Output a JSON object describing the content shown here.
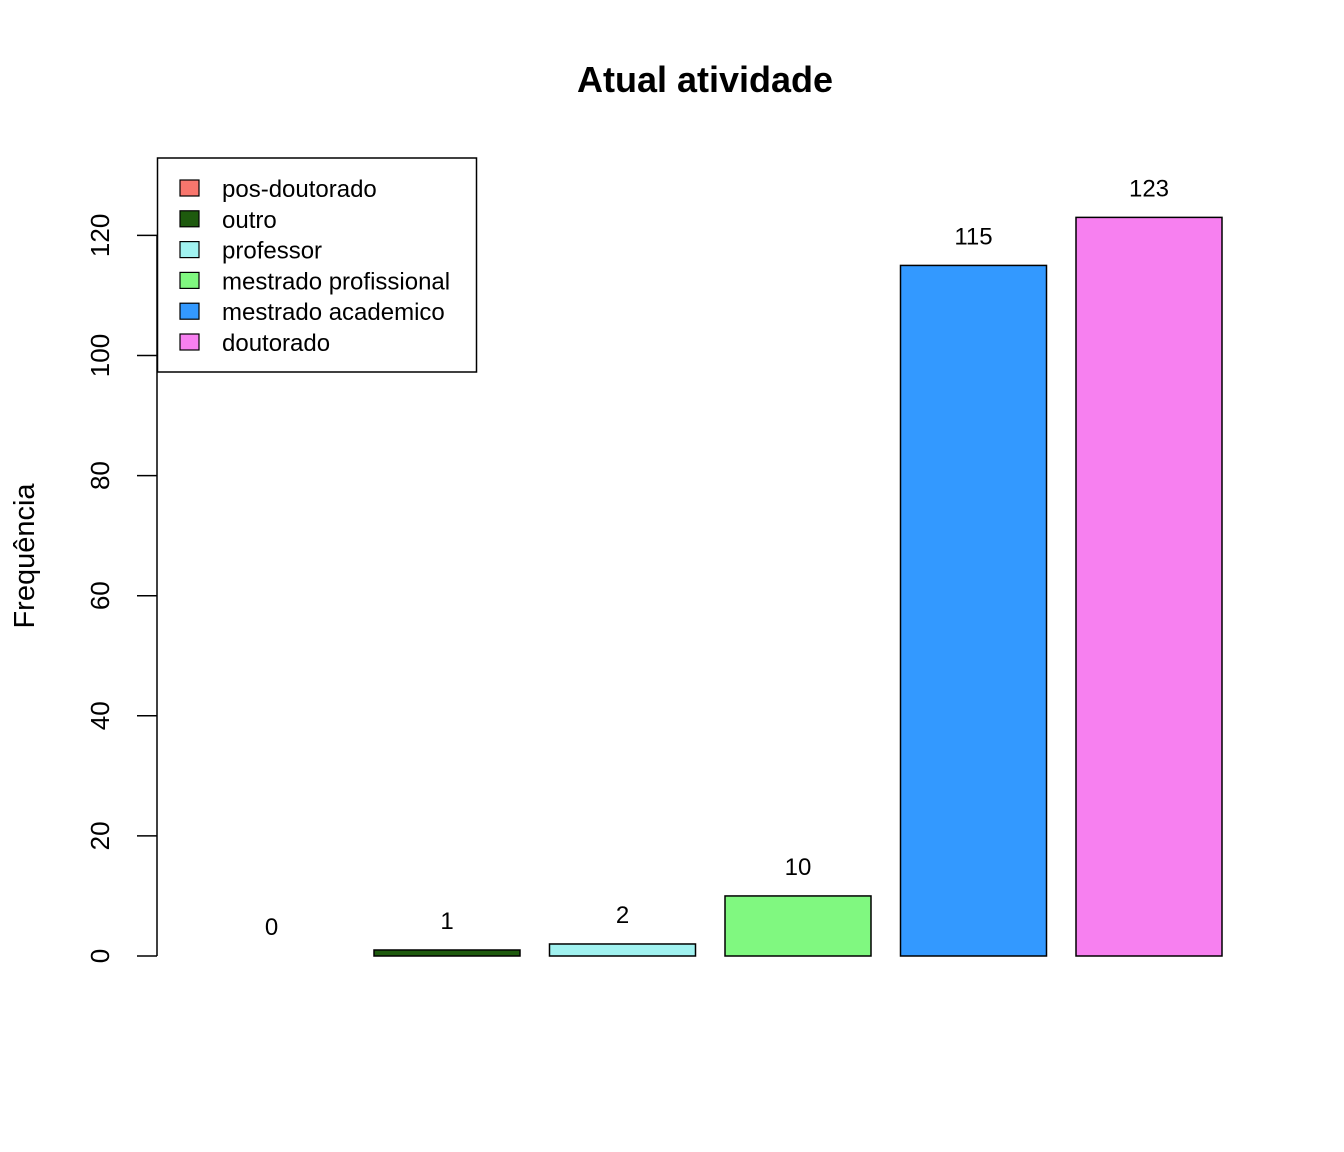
{
  "chart_data": {
    "type": "bar",
    "title": "Atual atividade",
    "xlabel": "",
    "ylabel": "Frequência",
    "ylim": [
      0,
      133
    ],
    "yticks": [
      0,
      20,
      40,
      60,
      80,
      100,
      120
    ],
    "categories": [
      "pos-doutorado",
      "outro",
      "professor",
      "mestrado profissional",
      "mestrado academico",
      "doutorado"
    ],
    "values": [
      0,
      1,
      2,
      10,
      115,
      123
    ],
    "data_labels": [
      "0",
      "1",
      "2",
      "10",
      "115",
      "123"
    ],
    "colors": [
      "#F8766D",
      "#1E5A0E",
      "#A1F2F0",
      "#80F880",
      "#3399FF",
      "#F780F0"
    ],
    "legend_position": "top-left",
    "grid": false
  }
}
